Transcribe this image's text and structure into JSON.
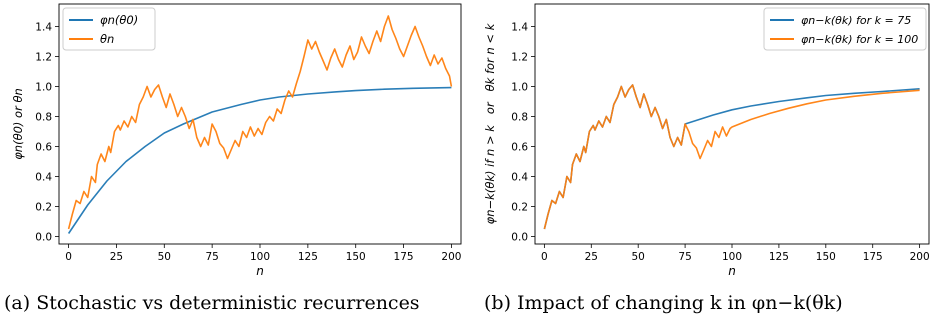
{
  "chart_data": [
    {
      "type": "line",
      "title": "",
      "xlabel": "n",
      "ylabel": "φn(θ0) or θn",
      "xlim": [
        -5,
        205
      ],
      "ylim": [
        -0.05,
        1.55
      ],
      "xticks": [
        "0",
        "25",
        "50",
        "75",
        "100",
        "125",
        "150",
        "175",
        "200"
      ],
      "yticks": [
        "0.0",
        "0.2",
        "0.4",
        "0.6",
        "0.8",
        "1.0",
        "1.2",
        "1.4"
      ],
      "legend_position": "top-left",
      "grid": false,
      "caption": "(a) Stochastic vs deterministic recurrences",
      "series": [
        {
          "name": "φn(θ0)",
          "color": "#1f77b4",
          "points": [
            [
              0,
              0.02
            ],
            [
              10,
              0.21
            ],
            [
              20,
              0.37
            ],
            [
              30,
              0.5
            ],
            [
              40,
              0.6
            ],
            [
              50,
              0.69
            ],
            [
              60,
              0.75
            ],
            [
              75,
              0.83
            ],
            [
              90,
              0.88
            ],
            [
              100,
              0.91
            ],
            [
              110,
              0.93
            ],
            [
              125,
              0.95
            ],
            [
              140,
              0.965
            ],
            [
              150,
              0.973
            ],
            [
              165,
              0.982
            ],
            [
              180,
              0.988
            ],
            [
              200,
              0.993
            ]
          ]
        },
        {
          "name": "θn",
          "color": "#ff7f0e",
          "points": [
            [
              0,
              0.05
            ],
            [
              2,
              0.15
            ],
            [
              4,
              0.24
            ],
            [
              6,
              0.22
            ],
            [
              8,
              0.3
            ],
            [
              10,
              0.26
            ],
            [
              12,
              0.4
            ],
            [
              14,
              0.36
            ],
            [
              15,
              0.48
            ],
            [
              17,
              0.55
            ],
            [
              19,
              0.5
            ],
            [
              21,
              0.6
            ],
            [
              22,
              0.56
            ],
            [
              24,
              0.7
            ],
            [
              26,
              0.74
            ],
            [
              27,
              0.71
            ],
            [
              29,
              0.77
            ],
            [
              31,
              0.73
            ],
            [
              33,
              0.8
            ],
            [
              35,
              0.76
            ],
            [
              37,
              0.88
            ],
            [
              39,
              0.93
            ],
            [
              41,
              1.0
            ],
            [
              43,
              0.93
            ],
            [
              45,
              0.98
            ],
            [
              47,
              1.01
            ],
            [
              49,
              0.93
            ],
            [
              51,
              0.86
            ],
            [
              53,
              0.95
            ],
            [
              55,
              0.88
            ],
            [
              57,
              0.8
            ],
            [
              59,
              0.86
            ],
            [
              61,
              0.8
            ],
            [
              63,
              0.72
            ],
            [
              65,
              0.78
            ],
            [
              67,
              0.66
            ],
            [
              69,
              0.6
            ],
            [
              71,
              0.66
            ],
            [
              73,
              0.61
            ],
            [
              75,
              0.75
            ],
            [
              77,
              0.7
            ],
            [
              79,
              0.62
            ],
            [
              81,
              0.59
            ],
            [
              83,
              0.52
            ],
            [
              85,
              0.58
            ],
            [
              87,
              0.64
            ],
            [
              89,
              0.6
            ],
            [
              91,
              0.7
            ],
            [
              93,
              0.66
            ],
            [
              95,
              0.73
            ],
            [
              97,
              0.67
            ],
            [
              99,
              0.72
            ],
            [
              101,
              0.68
            ],
            [
              103,
              0.76
            ],
            [
              105,
              0.8
            ],
            [
              107,
              0.77
            ],
            [
              109,
              0.85
            ],
            [
              111,
              0.82
            ],
            [
              113,
              0.91
            ],
            [
              115,
              0.97
            ],
            [
              117,
              0.93
            ],
            [
              119,
              1.02
            ],
            [
              121,
              1.1
            ],
            [
              123,
              1.2
            ],
            [
              125,
              1.31
            ],
            [
              127,
              1.25
            ],
            [
              129,
              1.3
            ],
            [
              131,
              1.23
            ],
            [
              133,
              1.17
            ],
            [
              135,
              1.11
            ],
            [
              137,
              1.19
            ],
            [
              139,
              1.25
            ],
            [
              141,
              1.18
            ],
            [
              143,
              1.13
            ],
            [
              145,
              1.21
            ],
            [
              147,
              1.27
            ],
            [
              149,
              1.18
            ],
            [
              151,
              1.23
            ],
            [
              153,
              1.33
            ],
            [
              155,
              1.27
            ],
            [
              157,
              1.22
            ],
            [
              159,
              1.3
            ],
            [
              161,
              1.37
            ],
            [
              163,
              1.3
            ],
            [
              165,
              1.4
            ],
            [
              167,
              1.47
            ],
            [
              169,
              1.38
            ],
            [
              171,
              1.32
            ],
            [
              173,
              1.25
            ],
            [
              175,
              1.2
            ],
            [
              177,
              1.27
            ],
            [
              179,
              1.34
            ],
            [
              181,
              1.4
            ],
            [
              183,
              1.33
            ],
            [
              185,
              1.27
            ],
            [
              187,
              1.2
            ],
            [
              189,
              1.14
            ],
            [
              191,
              1.21
            ],
            [
              193,
              1.15
            ],
            [
              195,
              1.19
            ],
            [
              197,
              1.12
            ],
            [
              199,
              1.07
            ],
            [
              200,
              1.0
            ]
          ]
        }
      ]
    },
    {
      "type": "line",
      "title": "",
      "xlabel": "n",
      "ylabel": "φn−k(θk) if n > k   or   θk for n < k",
      "xlim": [
        -5,
        205
      ],
      "ylim": [
        -0.05,
        1.55
      ],
      "xticks": [
        "0",
        "25",
        "50",
        "75",
        "100",
        "125",
        "150",
        "175",
        "200"
      ],
      "yticks": [
        "0.0",
        "0.2",
        "0.4",
        "0.6",
        "0.8",
        "1.0",
        "1.2",
        "1.4"
      ],
      "legend_position": "top-right",
      "grid": false,
      "caption": "(b) Impact of changing k in φn−k(θk)",
      "series": [
        {
          "name": "φn−k(θk) for k = 75",
          "color": "#1f77b4",
          "points": [
            [
              0,
              0.05
            ],
            [
              2,
              0.15
            ],
            [
              4,
              0.24
            ],
            [
              6,
              0.22
            ],
            [
              8,
              0.3
            ],
            [
              10,
              0.26
            ],
            [
              12,
              0.4
            ],
            [
              14,
              0.36
            ],
            [
              15,
              0.48
            ],
            [
              17,
              0.55
            ],
            [
              19,
              0.5
            ],
            [
              21,
              0.6
            ],
            [
              22,
              0.56
            ],
            [
              24,
              0.7
            ],
            [
              26,
              0.74
            ],
            [
              27,
              0.71
            ],
            [
              29,
              0.77
            ],
            [
              31,
              0.73
            ],
            [
              33,
              0.8
            ],
            [
              35,
              0.76
            ],
            [
              37,
              0.88
            ],
            [
              39,
              0.93
            ],
            [
              41,
              1.0
            ],
            [
              43,
              0.93
            ],
            [
              45,
              0.98
            ],
            [
              47,
              1.01
            ],
            [
              49,
              0.93
            ],
            [
              51,
              0.86
            ],
            [
              53,
              0.95
            ],
            [
              55,
              0.88
            ],
            [
              57,
              0.8
            ],
            [
              59,
              0.86
            ],
            [
              61,
              0.8
            ],
            [
              63,
              0.72
            ],
            [
              65,
              0.78
            ],
            [
              67,
              0.66
            ],
            [
              69,
              0.6
            ],
            [
              71,
              0.66
            ],
            [
              73,
              0.61
            ],
            [
              75,
              0.75
            ],
            [
              80,
              0.77
            ],
            [
              90,
              0.81
            ],
            [
              100,
              0.845
            ],
            [
              110,
              0.87
            ],
            [
              125,
              0.9
            ],
            [
              140,
              0.925
            ],
            [
              150,
              0.94
            ],
            [
              165,
              0.955
            ],
            [
              180,
              0.967
            ],
            [
              200,
              0.985
            ]
          ]
        },
        {
          "name": "φn−k(θk) for k = 100",
          "color": "#ff7f0e",
          "points": [
            [
              0,
              0.05
            ],
            [
              2,
              0.15
            ],
            [
              4,
              0.24
            ],
            [
              6,
              0.22
            ],
            [
              8,
              0.3
            ],
            [
              10,
              0.26
            ],
            [
              12,
              0.4
            ],
            [
              14,
              0.36
            ],
            [
              15,
              0.48
            ],
            [
              17,
              0.55
            ],
            [
              19,
              0.5
            ],
            [
              21,
              0.6
            ],
            [
              22,
              0.56
            ],
            [
              24,
              0.7
            ],
            [
              26,
              0.74
            ],
            [
              27,
              0.71
            ],
            [
              29,
              0.77
            ],
            [
              31,
              0.73
            ],
            [
              33,
              0.8
            ],
            [
              35,
              0.76
            ],
            [
              37,
              0.88
            ],
            [
              39,
              0.93
            ],
            [
              41,
              1.0
            ],
            [
              43,
              0.93
            ],
            [
              45,
              0.98
            ],
            [
              47,
              1.01
            ],
            [
              49,
              0.93
            ],
            [
              51,
              0.86
            ],
            [
              53,
              0.95
            ],
            [
              55,
              0.88
            ],
            [
              57,
              0.8
            ],
            [
              59,
              0.86
            ],
            [
              61,
              0.8
            ],
            [
              63,
              0.72
            ],
            [
              65,
              0.78
            ],
            [
              67,
              0.66
            ],
            [
              69,
              0.6
            ],
            [
              71,
              0.66
            ],
            [
              73,
              0.61
            ],
            [
              75,
              0.75
            ],
            [
              77,
              0.7
            ],
            [
              79,
              0.62
            ],
            [
              81,
              0.59
            ],
            [
              83,
              0.52
            ],
            [
              85,
              0.58
            ],
            [
              87,
              0.64
            ],
            [
              89,
              0.6
            ],
            [
              91,
              0.7
            ],
            [
              93,
              0.66
            ],
            [
              95,
              0.73
            ],
            [
              97,
              0.67
            ],
            [
              99,
              0.72
            ],
            [
              100,
              0.73
            ],
            [
              110,
              0.78
            ],
            [
              120,
              0.82
            ],
            [
              130,
              0.855
            ],
            [
              140,
              0.885
            ],
            [
              150,
              0.91
            ],
            [
              165,
              0.935
            ],
            [
              180,
              0.955
            ],
            [
              200,
              0.975
            ]
          ]
        }
      ]
    }
  ]
}
